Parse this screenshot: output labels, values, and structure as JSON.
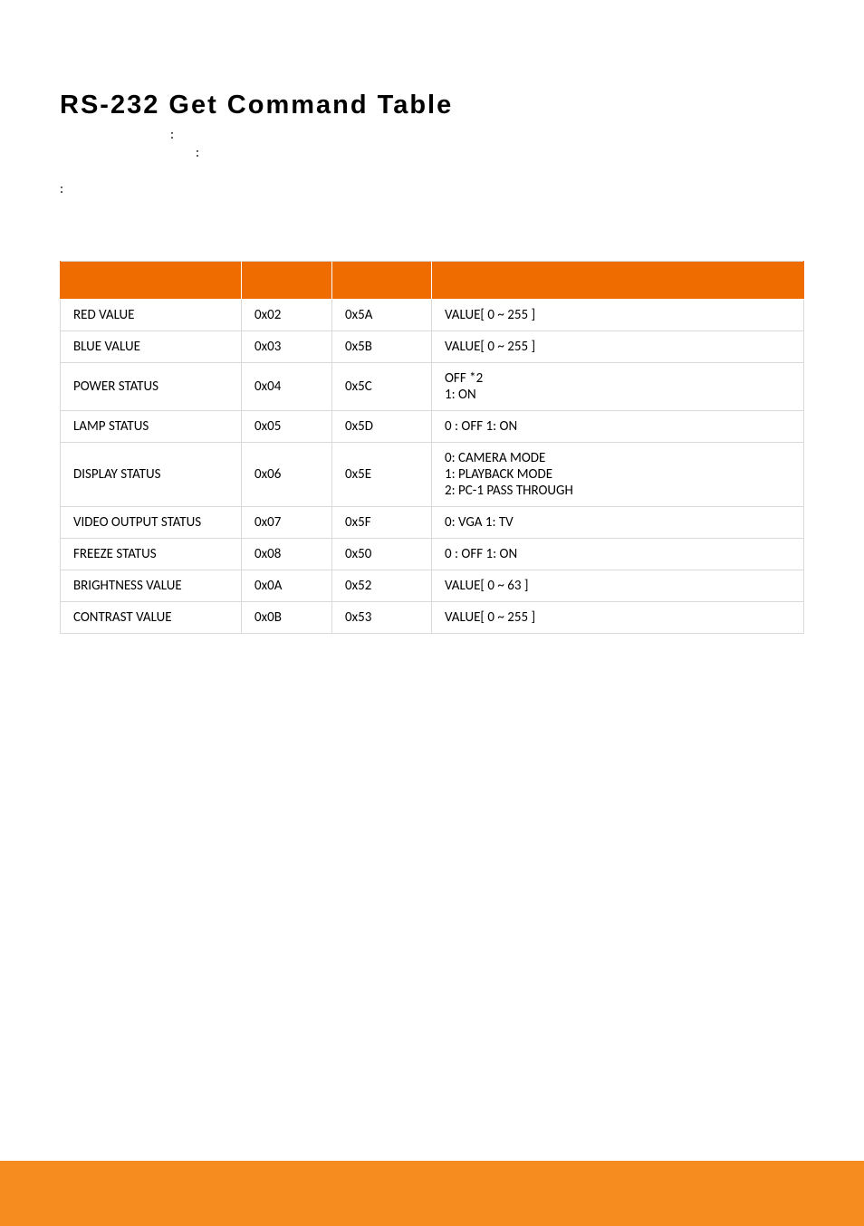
{
  "heading": "RS-232 Get Command Table",
  "spec_lines": [
    {
      "indent": "indent1",
      "text": ":"
    },
    {
      "indent": "indent2",
      "text": ":"
    },
    {
      "indent": "",
      "text": ":"
    }
  ],
  "table": {
    "columns": [
      "",
      "",
      "",
      ""
    ],
    "col_widths": [
      "200px",
      "100px",
      "110px",
      "auto"
    ],
    "rows": [
      {
        "func": "RED VALUE",
        "cmd": "0x02",
        "chk": "0x5A",
        "ret": "VALUE[ 0 ~ 255 ]"
      },
      {
        "func": "BLUE VALUE",
        "cmd": "0x03",
        "chk": "0x5B",
        "ret": "VALUE[ 0 ~ 255 ]"
      },
      {
        "func": "POWER STATUS",
        "cmd": "0x04",
        "chk": "0x5C",
        "ret": "OFF *2\n1: ON"
      },
      {
        "func": "LAMP STATUS",
        "cmd": "0x05",
        "chk": "0x5D",
        "ret": "0 : OFF    1: ON"
      },
      {
        "func": "DISPLAY STATUS",
        "cmd": "0x06",
        "chk": "0x5E",
        "ret": "0: CAMERA  MODE\n1: PLAYBACK MODE\n2: PC-1 PASS THROUGH"
      },
      {
        "func": "VIDEO OUTPUT STATUS",
        "cmd": "0x07",
        "chk": "0x5F",
        "ret": "0: VGA  1: TV"
      },
      {
        "func": "FREEZE STATUS",
        "cmd": "0x08",
        "chk": "0x50",
        "ret": "0 : OFF    1: ON"
      },
      {
        "func": "BRIGHTNESS VALUE",
        "cmd": "0x0A",
        "chk": "0x52",
        "ret": "VALUE[ 0 ~ 63 ]"
      },
      {
        "func": "CONTRAST VALUE",
        "cmd": "0x0B",
        "chk": "0x53",
        "ret": "VALUE[ 0 ~ 255 ]"
      }
    ]
  },
  "colors": {
    "header_bg": "#ef6c00",
    "footer_bg": "#f68b1f",
    "border": "#d9d9d9",
    "text": "#000000"
  }
}
